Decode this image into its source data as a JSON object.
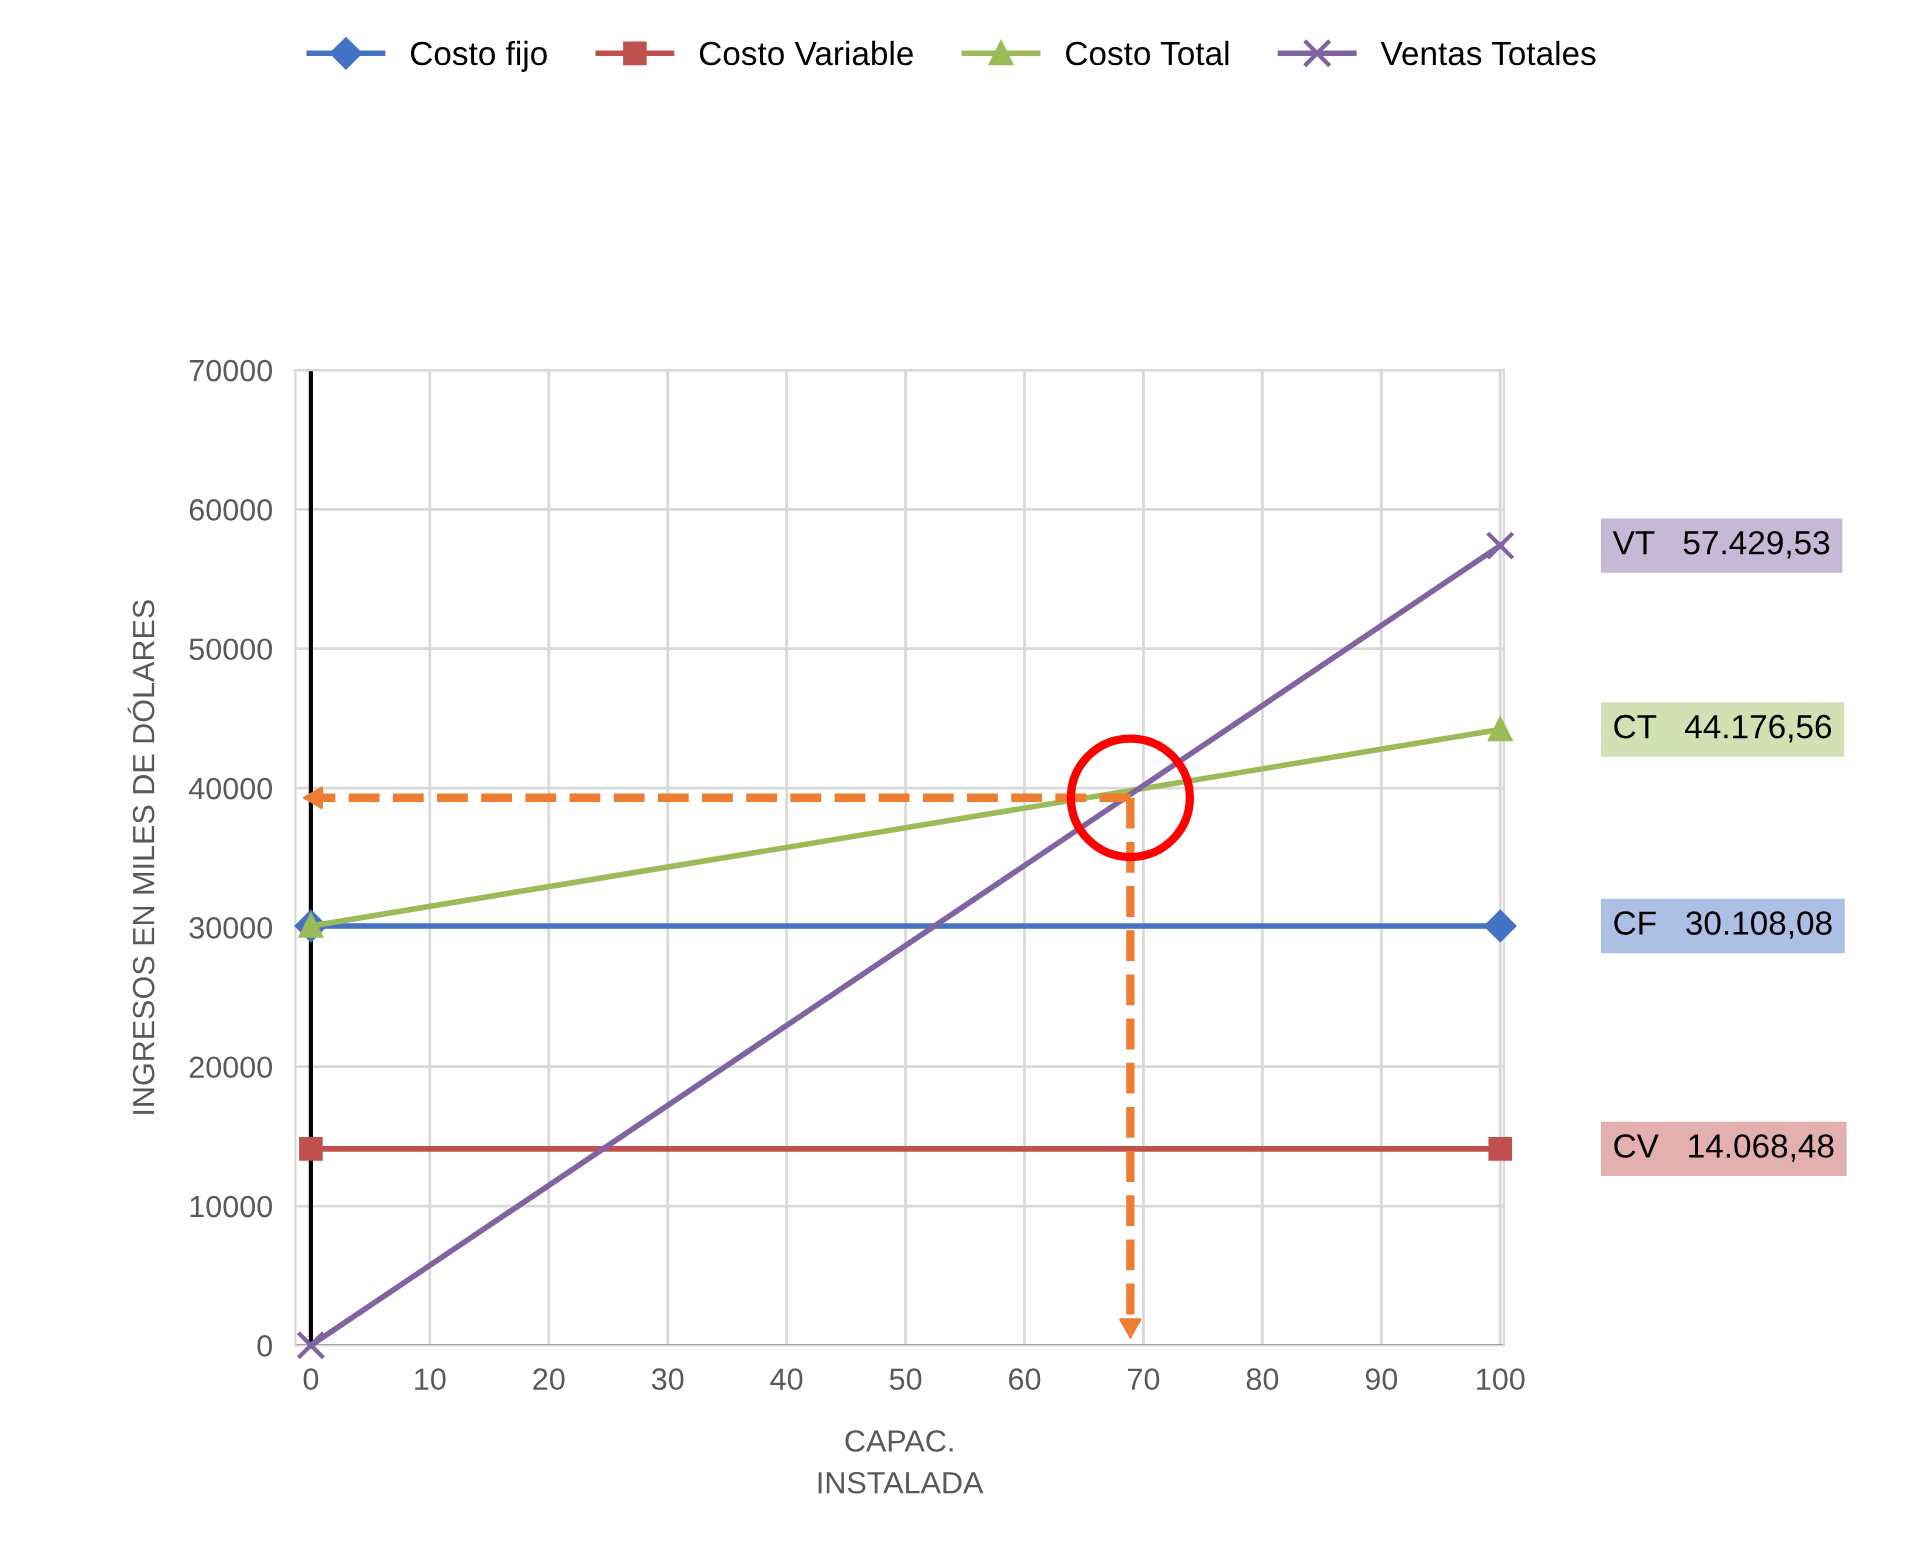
{
  "chart_data": {
    "type": "line",
    "xlabel": "CAPAC.\nINSTALADA",
    "ylabel": "INGRESOS EN MILES DE DÓLARES",
    "x": [
      0,
      100
    ],
    "series": [
      {
        "name": "Costo fijo",
        "color": "#4472c4",
        "marker": "diamond",
        "values": [
          30100,
          30100
        ]
      },
      {
        "name": "Costo Variable",
        "color": "#c0504d",
        "marker": "square",
        "values": [
          14100,
          14100
        ]
      },
      {
        "name": "Costo Total",
        "color": "#9bbb59",
        "marker": "triangle",
        "values": [
          30100,
          44200
        ]
      },
      {
        "name": "Ventas Totales",
        "color": "#8064a2",
        "marker": "cross",
        "values": [
          0,
          57400
        ]
      }
    ],
    "xlim": [
      -1.3,
      100.3
    ],
    "xticks": [
      0,
      10,
      20,
      30,
      40,
      50,
      60,
      70,
      80,
      90,
      100
    ],
    "ylim": [
      0,
      70000
    ],
    "yticks": [
      0,
      10000,
      20000,
      30000,
      40000,
      50000,
      60000,
      70000
    ],
    "grid": true,
    "legend": "top",
    "line_style": "solid",
    "ref_lines": [
      {
        "axis": "y",
        "value": 39300,
        "color": "#ed7d31",
        "line_style": "dashed"
      },
      {
        "axis": "x",
        "value": 68.9,
        "color": "#ed7d31",
        "line_style": "dashed"
      }
    ],
    "annotations": [
      "VT 57.429,53",
      "CT 44.176,56",
      "CF 30.108,08",
      "CV 14.068,48"
    ]
  }
}
